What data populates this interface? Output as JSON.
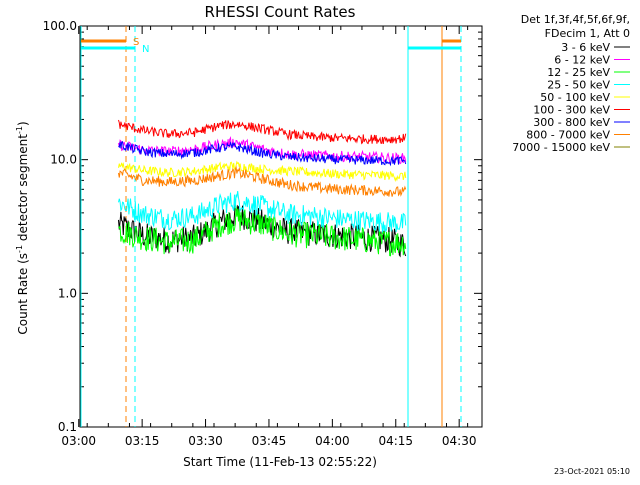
{
  "chart_data": {
    "type": "line",
    "title": "RHESSI Count Rates",
    "xlabel": "Start Time (11-Feb-13 02:55:22)",
    "ylabel_main": "Count Rate (s",
    "ylabel_sup1": "-1",
    "ylabel_mid": " detector segment",
    "ylabel_sup2": "-1",
    "ylabel_end": ")",
    "yscale": "log",
    "ylim": [
      0.1,
      100.0
    ],
    "xlim_minutes": [
      2.9,
      98.0
    ],
    "xticks": [
      {
        "minute": 2.6,
        "label": "03:00"
      },
      {
        "minute": 17.6,
        "label": "03:15"
      },
      {
        "minute": 32.6,
        "label": "03:30"
      },
      {
        "minute": 47.6,
        "label": "03:45"
      },
      {
        "minute": 62.6,
        "label": "04:00"
      },
      {
        "minute": 77.6,
        "label": "04:15"
      },
      {
        "minute": 92.6,
        "label": "04:30"
      }
    ],
    "yticks": [
      {
        "value": 0.1,
        "label": "0.1"
      },
      {
        "value": 1.0,
        "label": "1.0"
      },
      {
        "value": 10.0,
        "label": "10.0"
      },
      {
        "value": 100.0,
        "label": "100.0"
      }
    ],
    "legend_header": [
      "Det 1f,3f,4f,5f,6f,9f,",
      "FDecim 1, Att 0"
    ],
    "series": [
      {
        "name": "3 - 6 keV",
        "color": "#000000",
        "x": [
          12,
          18,
          24,
          30,
          36,
          40,
          46,
          52,
          58,
          64,
          70,
          76,
          80
        ],
        "values": [
          3.3,
          2.7,
          2.5,
          2.6,
          3.4,
          3.9,
          3.4,
          2.9,
          2.8,
          2.7,
          2.6,
          2.5,
          2.3
        ]
      },
      {
        "name": "6 - 12 keV",
        "color": "#ff00ff",
        "x": [
          12,
          18,
          24,
          30,
          36,
          40,
          46,
          52,
          58,
          64,
          70,
          76,
          80
        ],
        "values": [
          13.0,
          11.8,
          11.5,
          12.0,
          13.0,
          13.5,
          12.0,
          11.0,
          10.8,
          10.6,
          10.5,
          10.3,
          10.2
        ]
      },
      {
        "name": "12 - 25 keV",
        "color": "#00ff00",
        "x": [
          12,
          18,
          24,
          30,
          36,
          40,
          46,
          52,
          58,
          64,
          70,
          76,
          80
        ],
        "values": [
          3.0,
          2.6,
          2.4,
          2.5,
          3.3,
          3.6,
          3.3,
          2.8,
          2.7,
          2.6,
          2.5,
          2.4,
          2.4
        ]
      },
      {
        "name": "25 - 50 keV",
        "color": "#00ffff",
        "x": [
          12,
          18,
          24,
          30,
          36,
          40,
          46,
          52,
          58,
          64,
          70,
          76,
          80
        ],
        "values": [
          4.8,
          3.9,
          3.6,
          3.8,
          4.6,
          5.0,
          4.5,
          3.9,
          3.8,
          3.6,
          3.5,
          3.4,
          3.3
        ]
      },
      {
        "name": "50 - 100 keV",
        "color": "#ffff00",
        "x": [
          12,
          18,
          24,
          30,
          36,
          40,
          46,
          52,
          58,
          64,
          70,
          76,
          80
        ],
        "values": [
          9.0,
          8.3,
          8.0,
          8.2,
          8.8,
          9.0,
          8.5,
          8.2,
          8.0,
          7.8,
          7.7,
          7.6,
          7.5
        ]
      },
      {
        "name": "100 - 300 keV",
        "color": "#ff0000",
        "x": [
          12,
          18,
          24,
          30,
          36,
          40,
          46,
          52,
          58,
          64,
          70,
          76,
          80
        ],
        "values": [
          18.5,
          16.5,
          15.5,
          16.0,
          18.0,
          18.5,
          17.0,
          15.5,
          14.8,
          14.5,
          14.3,
          14.2,
          14.5
        ]
      },
      {
        "name": "300 - 800 keV",
        "color": "#0000ff",
        "x": [
          12,
          18,
          24,
          30,
          36,
          40,
          46,
          52,
          58,
          64,
          70,
          76,
          80
        ],
        "values": [
          13.0,
          11.5,
          11.0,
          11.3,
          12.3,
          12.5,
          11.2,
          10.5,
          10.2,
          10.0,
          9.9,
          9.8,
          9.8
        ]
      },
      {
        "name": "800 - 7000 keV",
        "color": "#ff8000",
        "x": [
          12,
          18,
          24,
          30,
          36,
          40,
          46,
          52,
          58,
          64,
          70,
          76,
          80
        ],
        "values": [
          8.0,
          7.0,
          6.8,
          7.0,
          7.6,
          8.0,
          7.2,
          6.5,
          6.2,
          6.0,
          5.9,
          5.8,
          5.7
        ]
      },
      {
        "name": "7000 - 15000 keV",
        "color": "#808000",
        "x": [],
        "values": []
      }
    ],
    "attenuator_S": {
      "label": "S",
      "color": "#ff8000"
    },
    "night_N": {
      "label": "N",
      "color": "#00ffff"
    }
  },
  "footer": {
    "date": "23-Oct-2021 05:10"
  }
}
